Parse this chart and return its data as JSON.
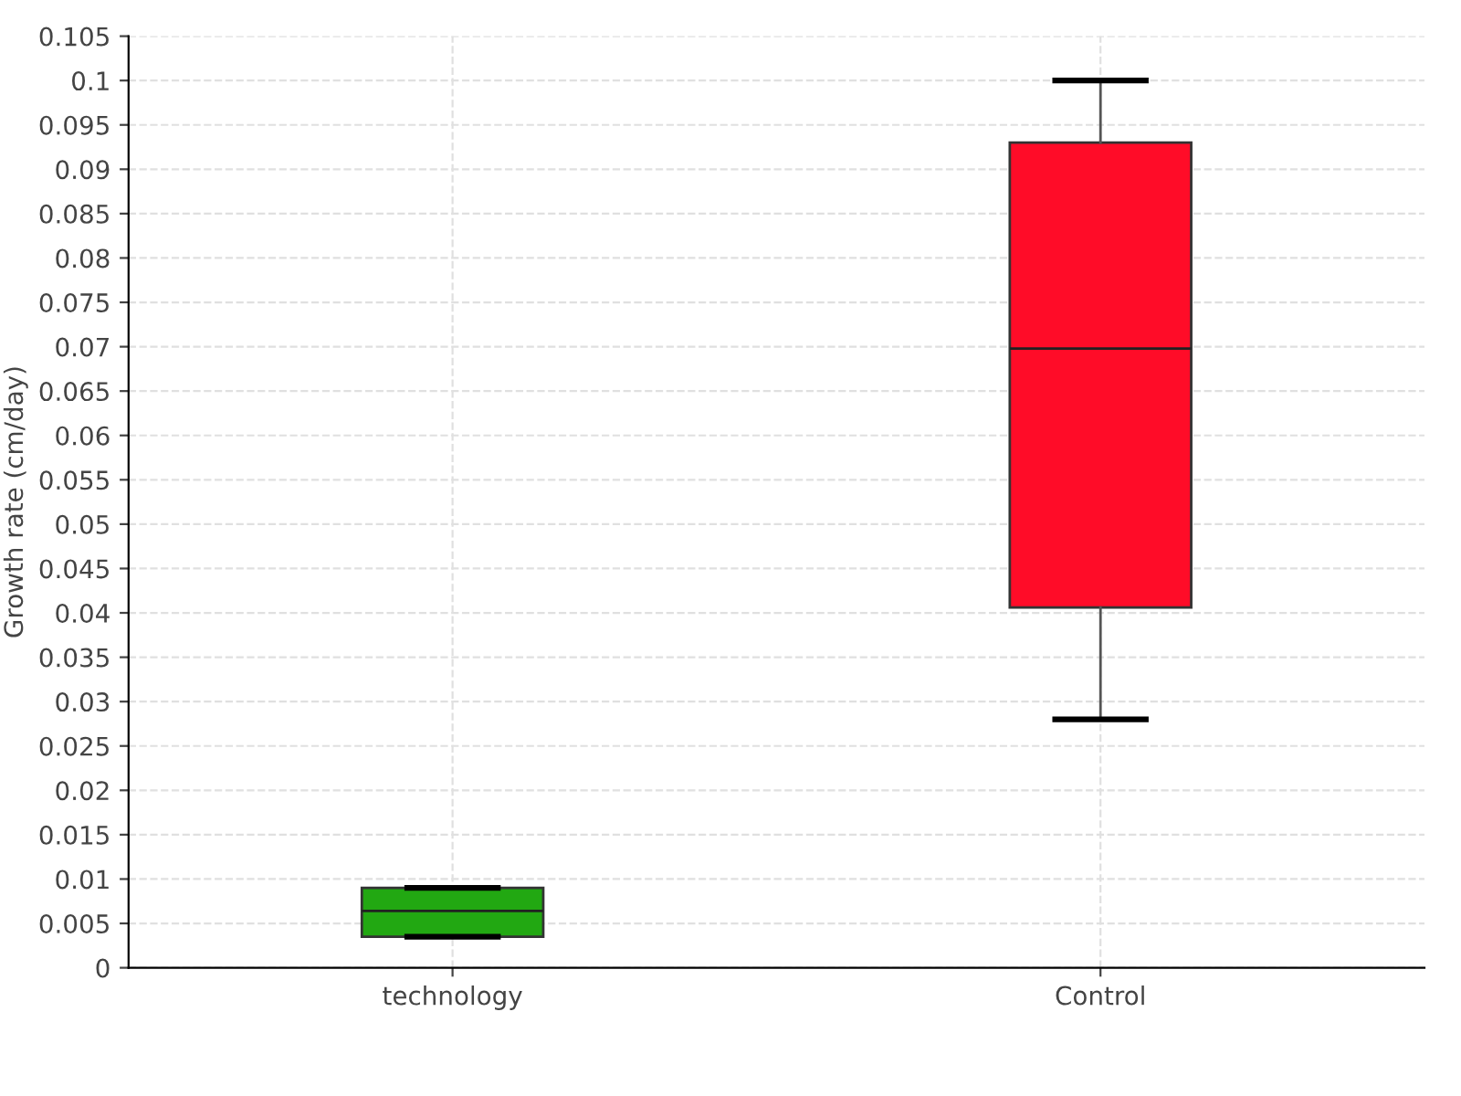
{
  "chart_data": {
    "type": "box",
    "categories": [
      "technology",
      "Control"
    ],
    "ylabel": "Growth rate (cm/day)",
    "boxes": [
      {
        "low": 0.0035,
        "q1": 0.0035,
        "median": 0.0064,
        "q3": 0.009,
        "high": 0.009
      },
      {
        "low": 0.028,
        "q1": 0.0406,
        "median": 0.0698,
        "q3": 0.093,
        "high": 0.1
      }
    ],
    "colors": [
      "#22a812",
      "#ff0c28"
    ],
    "ylim": [
      0,
      0.105
    ],
    "yticks": [
      0,
      0.005,
      0.01,
      0.015,
      0.02,
      0.025,
      0.03,
      0.035,
      0.04,
      0.045,
      0.05,
      0.055,
      0.06,
      0.065,
      0.07,
      0.075,
      0.08,
      0.085,
      0.09,
      0.095,
      0.1,
      0.105
    ],
    "grid": true
  }
}
